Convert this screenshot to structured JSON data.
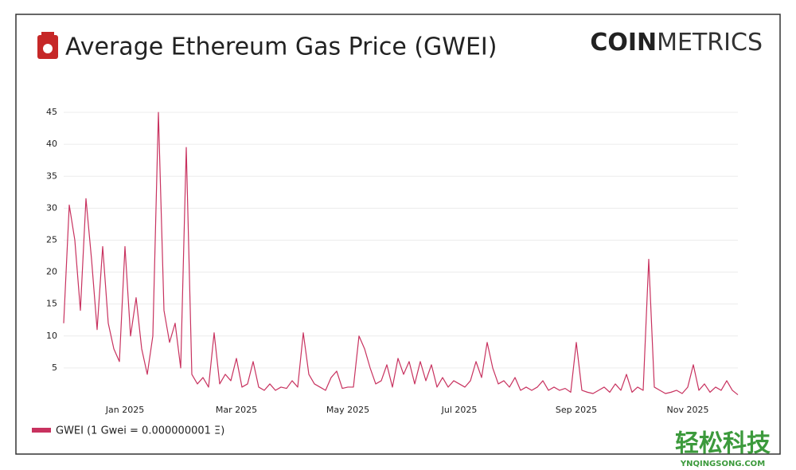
{
  "chart_data": {
    "type": "line",
    "title": "Average Ethereum Gas Price (GWEI)",
    "logo": {
      "bold": "COIN",
      "light": "METRICS"
    },
    "watermark": {
      "name": "轻松科技",
      "site": "YNQINGSONG.COM"
    },
    "categories": [
      null,
      null,
      null,
      null,
      null,
      null,
      null,
      null,
      null,
      null,
      null,
      "Jan 2025",
      null,
      null,
      null,
      null,
      null,
      null,
      null,
      null,
      null,
      null,
      null,
      null,
      null,
      null,
      null,
      null,
      null,
      null,
      null,
      "Mar 2025",
      null,
      null,
      null,
      null,
      null,
      null,
      null,
      null,
      null,
      null,
      null,
      null,
      null,
      null,
      null,
      null,
      null,
      null,
      null,
      "May 2025",
      null,
      null,
      null,
      null,
      null,
      null,
      null,
      null,
      null,
      null,
      null,
      null,
      null,
      null,
      null,
      null,
      null,
      null,
      null,
      "Jul 2025",
      null,
      null,
      null,
      null,
      null,
      null,
      null,
      null,
      null,
      null,
      null,
      null,
      null,
      null,
      null,
      null,
      null,
      null,
      null,
      null,
      "Sep 2025",
      null,
      null,
      null,
      null,
      null,
      null,
      null,
      null,
      null,
      null,
      null,
      null,
      null,
      null,
      null,
      null,
      null,
      null,
      null,
      "Nov 2025",
      null,
      null,
      null,
      null,
      null,
      null,
      null,
      null,
      null
    ],
    "series": [
      {
        "name": "GWEI (1 Gwei = 0.000000001 Ξ)",
        "color": "#c8325f",
        "values": [
          12,
          30.5,
          25,
          14,
          31.5,
          22,
          11,
          24,
          12,
          8,
          6,
          24,
          10,
          16,
          8,
          4,
          10,
          45,
          14,
          9,
          12,
          5,
          39.5,
          4,
          2.5,
          3.5,
          2,
          10.5,
          2.5,
          4,
          3,
          6.5,
          2,
          2.5,
          6,
          2,
          1.5,
          2.5,
          1.5,
          2,
          1.8,
          3,
          2,
          10.5,
          4,
          2.5,
          2,
          1.5,
          3.5,
          4.5,
          1.8,
          2,
          2,
          10,
          8,
          5,
          2.5,
          3,
          5.5,
          2,
          6.5,
          4,
          6,
          2.5,
          6,
          3,
          5.5,
          2,
          3.5,
          2,
          3,
          2.5,
          2,
          3,
          6,
          3.5,
          9,
          5,
          2.5,
          3,
          2,
          3.5,
          1.5,
          2,
          1.5,
          2,
          3,
          1.5,
          2,
          1.5,
          1.8,
          1.2,
          9,
          1.5,
          1.2,
          1,
          1.5,
          2,
          1.2,
          2.5,
          1.5,
          4,
          1.2,
          2,
          1.5,
          22,
          2,
          1.5,
          1,
          1.2,
          1.5,
          1,
          2,
          5.5,
          1.5,
          2.5,
          1.2,
          2,
          1.5,
          3,
          1.5,
          0.8
        ]
      }
    ],
    "ylim": [
      0,
      47
    ],
    "yticks": [
      5,
      10,
      15,
      20,
      25,
      30,
      35,
      40,
      45
    ],
    "grid": true
  }
}
